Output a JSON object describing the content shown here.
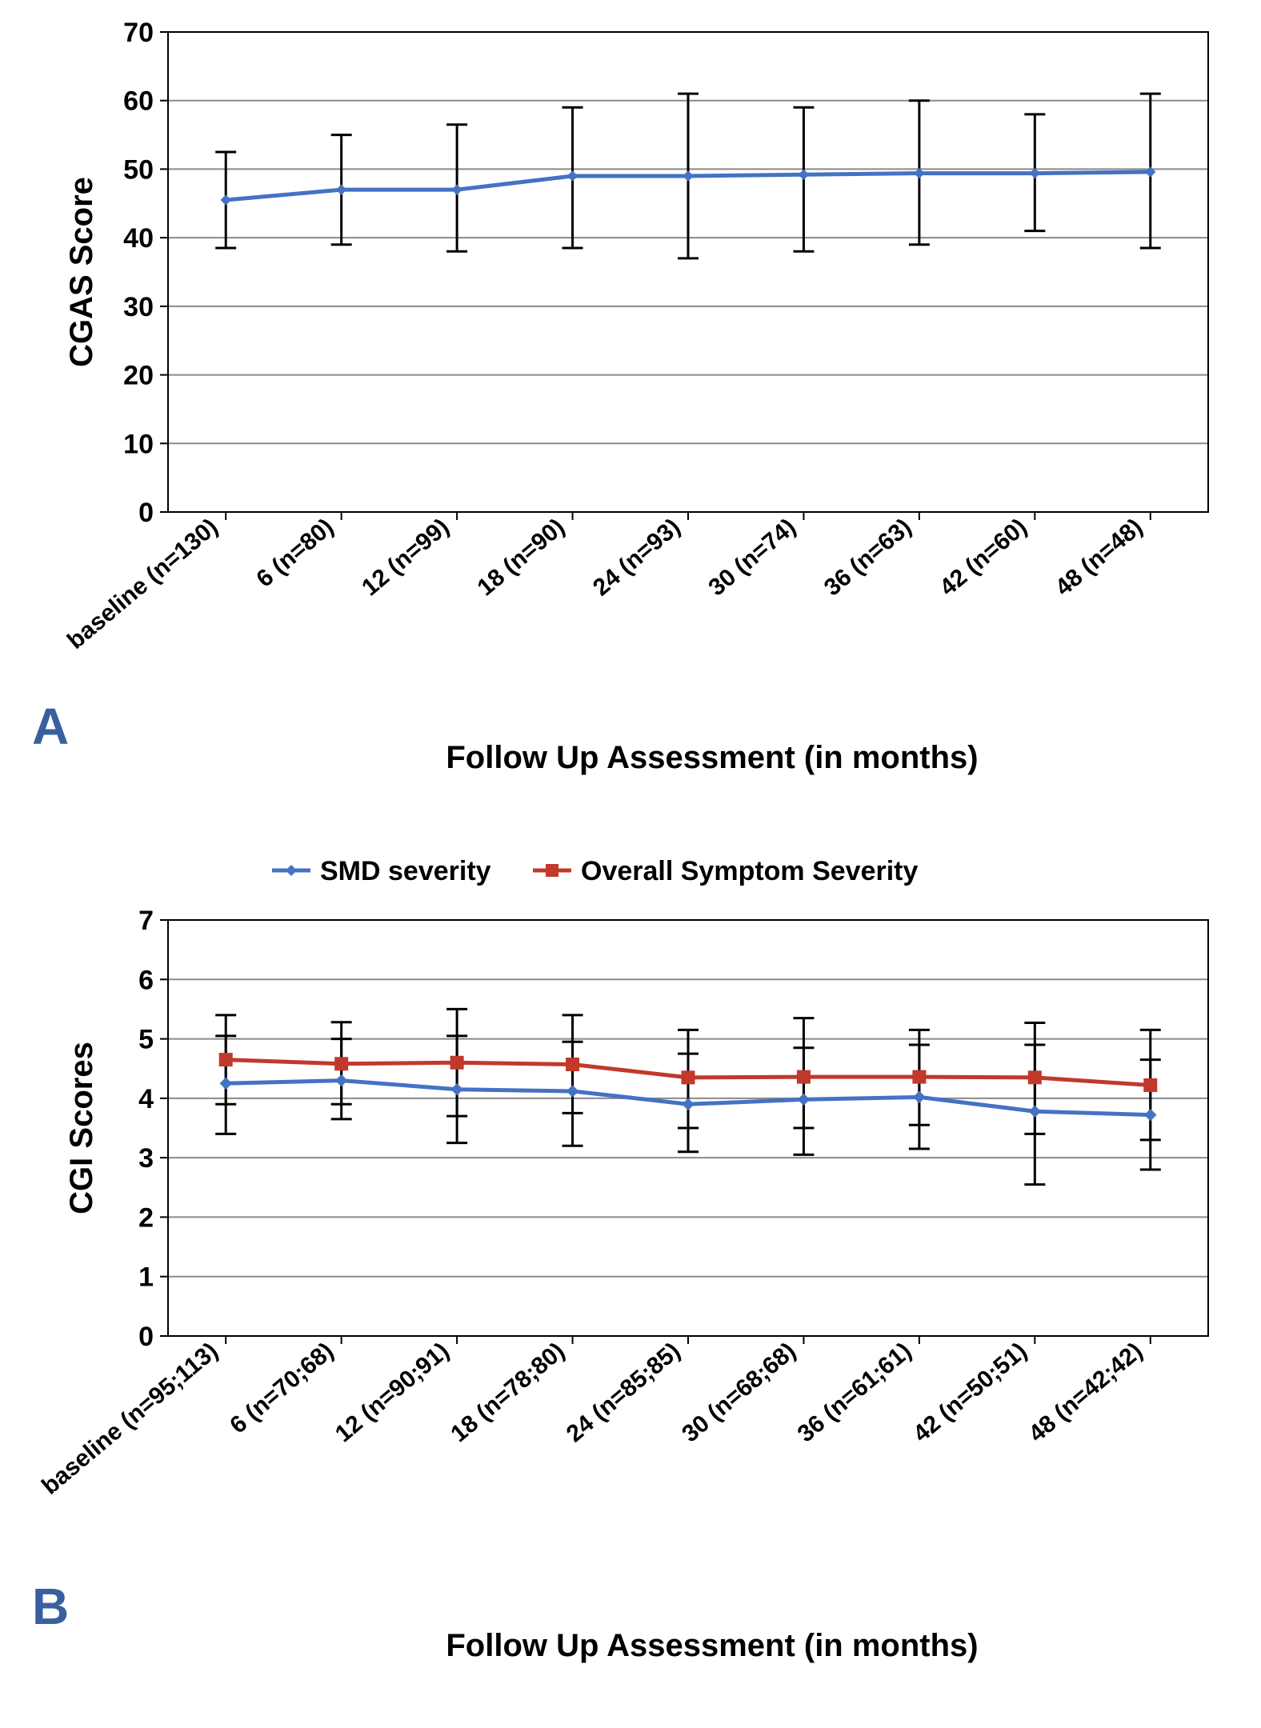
{
  "chartA": {
    "type": "line-errorbar",
    "panel_letter": "A",
    "panel_letter_color": "#3a5fa0",
    "panel_letter_fontsize": 64,
    "ylabel": "CGAS Score",
    "xlabel": "Follow Up Assessment (in months)",
    "axis_label_fontsize": 40,
    "tick_fontsize": 34,
    "x_tick_fontsize": 30,
    "ylim": [
      0,
      70
    ],
    "ytick_step": 10,
    "yticks": [
      0,
      10,
      20,
      30,
      40,
      50,
      60,
      70
    ],
    "categories": [
      "baseline (n=130)",
      "6 (n=80)",
      "12 (n=99)",
      "18 (n=90)",
      "24 (n=93)",
      "30 (n=74)",
      "36 (n=63)",
      "42 (n=60)",
      "48 (n=48)"
    ],
    "series": [
      {
        "name": "CGAS",
        "color": "#4472c4",
        "marker": "diamond",
        "marker_size": 12,
        "line_width": 5,
        "values": [
          45.5,
          47.0,
          47.0,
          49.0,
          49.0,
          49.2,
          49.4,
          49.4,
          49.6
        ],
        "err_low": [
          38.5,
          39.0,
          38.0,
          38.5,
          37.0,
          38.0,
          39.0,
          41.0,
          38.5
        ],
        "err_high": [
          52.5,
          55.0,
          56.5,
          59.0,
          61.0,
          59.0,
          60.0,
          58.0,
          61.0
        ]
      }
    ],
    "background_color": "#ffffff",
    "grid_color": "#8a8a8a",
    "border_color": "#000000",
    "errorbar_color": "#000000",
    "errorbar_width": 3,
    "errorbar_cap": 26
  },
  "chartB": {
    "type": "line-errorbar",
    "panel_letter": "B",
    "panel_letter_color": "#3a5fa0",
    "panel_letter_fontsize": 64,
    "ylabel": "CGI Scores",
    "xlabel": "Follow Up Assessment (in months)",
    "axis_label_fontsize": 40,
    "tick_fontsize": 34,
    "x_tick_fontsize": 30,
    "ylim": [
      0,
      7
    ],
    "ytick_step": 1,
    "yticks": [
      0,
      1,
      2,
      3,
      4,
      5,
      6,
      7
    ],
    "categories": [
      "baseline (n=95;113)",
      "6 (n=70;68)",
      "12 (n=90;91)",
      "18 (n=78;80)",
      "24 (n=85;85)",
      "30 (n=68;68)",
      "36 (n=61;61)",
      "42 (n=50;51)",
      "48 (n=42;42)"
    ],
    "legend": {
      "items": [
        "SMD severity",
        "Overall Symptom Severity"
      ],
      "fontsize": 34
    },
    "series": [
      {
        "name": "SMD severity",
        "color": "#4472c4",
        "marker": "diamond",
        "marker_size": 14,
        "line_width": 5,
        "values": [
          4.25,
          4.3,
          4.15,
          4.12,
          3.9,
          3.98,
          4.02,
          3.78,
          3.72
        ],
        "err_low": [
          3.4,
          3.65,
          3.25,
          3.2,
          3.1,
          3.05,
          3.15,
          2.55,
          2.8
        ],
        "err_high": [
          5.05,
          5.0,
          5.05,
          4.95,
          4.75,
          4.85,
          4.9,
          4.9,
          4.65
        ]
      },
      {
        "name": "Overall Symptom Severity",
        "color": "#c0392b",
        "marker": "square",
        "marker_size": 16,
        "line_width": 5,
        "values": [
          4.65,
          4.58,
          4.6,
          4.57,
          4.35,
          4.36,
          4.36,
          4.35,
          4.22
        ],
        "err_low": [
          3.9,
          3.9,
          3.7,
          3.75,
          3.5,
          3.5,
          3.55,
          3.4,
          3.3
        ],
        "err_high": [
          5.4,
          5.28,
          5.5,
          5.4,
          5.15,
          5.35,
          5.15,
          5.27,
          5.15
        ]
      }
    ],
    "background_color": "#ffffff",
    "grid_color": "#8a8a8a",
    "border_color": "#000000",
    "errorbar_color": "#000000",
    "errorbar_width": 3,
    "errorbar_cap": 26
  }
}
